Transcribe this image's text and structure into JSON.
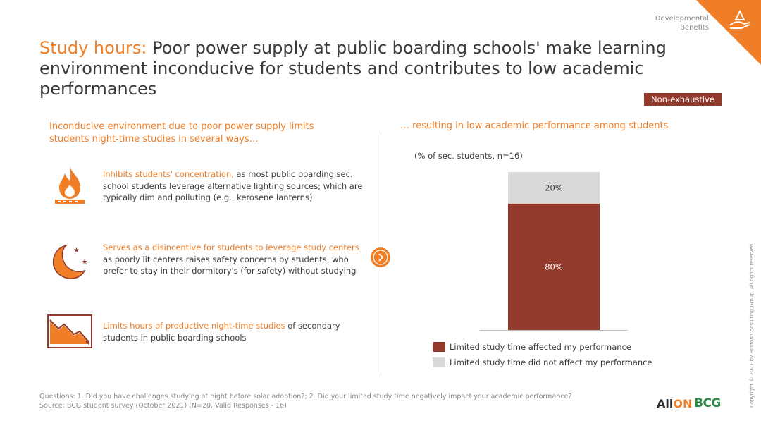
{
  "header": {
    "tag_line1": "Developmental",
    "tag_line2": "Benefits",
    "title_highlight": "Study hours:",
    "title_rest": " Poor power supply at public boarding schools' make learning environment inconducive for students and contributes to low academic performances",
    "badge": "Non-exhaustive",
    "accent_color": "#f07e26",
    "badge_color": "#923a2c"
  },
  "left": {
    "heading": "Inconducive environment due to poor power supply limits students night-time studies in several ways…",
    "items": [
      {
        "icon": "flame-icon",
        "highlight": "Inhibits students' concentration,",
        "text": " as most public boarding sec. school students leverage alternative lighting sources; which are typically dim and polluting (e.g., kerosene lanterns)"
      },
      {
        "icon": "moon-stars-icon",
        "highlight": "Serves as a disincentive for students to leverage study centers",
        "text": " as poorly lit centers raises safety concerns by students, who prefer to stay in their dormitory's (for safety) without studying"
      },
      {
        "icon": "declining-chart-icon",
        "highlight": "Limits hours of productive night-time studies",
        "text": " of secondary students in public boarding schools"
      }
    ]
  },
  "right": {
    "heading": "… resulting in low academic performance among students"
  },
  "chart_data": {
    "type": "bar",
    "stacked": true,
    "subtitle": "(% of sec. students, n=16)",
    "categories": [
      ""
    ],
    "series": [
      {
        "name": "Limited study time affected my performance",
        "values": [
          80
        ],
        "label": "80%",
        "color": "#923a2c"
      },
      {
        "name": "Limited study time did not affect my performance",
        "values": [
          20
        ],
        "label": "20%",
        "color": "#d9d9d9"
      }
    ],
    "ylim": [
      0,
      100
    ],
    "legend_position": "bottom"
  },
  "footer": {
    "line1": "Questions: 1. Did you have challenges studying at night before solar adoption?; 2. Did your limited study time negatively impact your academic performance?",
    "line2": "Source: BCG student survey (October 2021) (N=20, Valid Responses - 16)",
    "copyright": "Copyright © 2021 by Boston Consulting Group. All rights reserved.",
    "logo_all": "All",
    "logo_on": "ON",
    "logo_bcg": "BCG"
  }
}
